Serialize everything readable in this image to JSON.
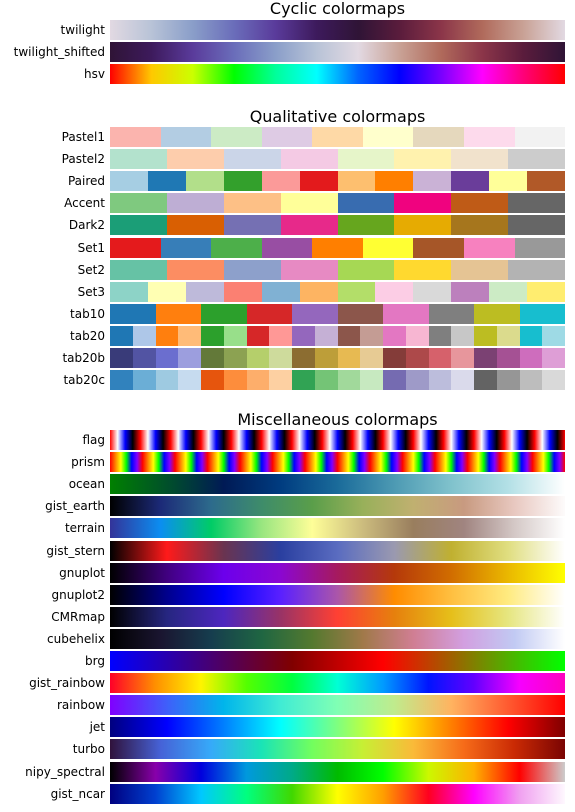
{
  "chart_data": {
    "type": "colormap-reference",
    "sections": [
      {
        "title": "Cyclic colormaps",
        "colormaps": [
          {
            "name": "twilight",
            "kind": "continuous",
            "colors": [
              "#e2d9e2",
              "#b8c3d7",
              "#8a9ec9",
              "#6a6dba",
              "#5a3b9b",
              "#3d1a5c",
              "#2f1436",
              "#5a1c3c",
              "#8b3549",
              "#b06a5b",
              "#c9a296",
              "#e2d9e2"
            ]
          },
          {
            "name": "twilight_shifted",
            "kind": "continuous",
            "colors": [
              "#2f1436",
              "#3d1a5c",
              "#5a3b9b",
              "#6a6dba",
              "#8a9ec9",
              "#b8c3d7",
              "#e2d9e2",
              "#c9a296",
              "#b06a5b",
              "#8b3549",
              "#5a1c3c",
              "#2f1436"
            ]
          },
          {
            "name": "hsv",
            "kind": "continuous",
            "colors": [
              "#ff0000",
              "#ffc800",
              "#cbff00",
              "#00ff00",
              "#00ff9a",
              "#00ffff",
              "#0064ff",
              "#0000ff",
              "#7800ff",
              "#ff00ff",
              "#ff0078",
              "#ff0000"
            ]
          }
        ]
      },
      {
        "title": "Qualitative colormaps",
        "colormaps": [
          {
            "name": "Pastel1",
            "kind": "discrete",
            "colors": [
              "#fbb4ae",
              "#b3cde3",
              "#ccebc5",
              "#decbe4",
              "#fed9a6",
              "#ffffcc",
              "#e5d8bd",
              "#fddaec",
              "#f2f2f2"
            ]
          },
          {
            "name": "Pastel2",
            "kind": "discrete",
            "colors": [
              "#b3e2cd",
              "#fdcdac",
              "#cbd5e8",
              "#f4cae4",
              "#e6f5c9",
              "#fff2ae",
              "#f1e2cc",
              "#cccccc"
            ]
          },
          {
            "name": "Paired",
            "kind": "discrete",
            "colors": [
              "#a6cee3",
              "#1f78b4",
              "#b2df8a",
              "#33a02c",
              "#fb9a99",
              "#e31a1c",
              "#fdbf6f",
              "#ff7f00",
              "#cab2d6",
              "#6a3d9a",
              "#ffff99",
              "#b15928"
            ]
          },
          {
            "name": "Accent",
            "kind": "discrete",
            "colors": [
              "#7fc97f",
              "#beaed4",
              "#fdc086",
              "#ffff99",
              "#386cb0",
              "#f0027f",
              "#bf5b17",
              "#666666"
            ]
          },
          {
            "name": "Dark2",
            "kind": "discrete",
            "colors": [
              "#1b9e77",
              "#d95f02",
              "#7570b3",
              "#e7298a",
              "#66a61e",
              "#e6ab02",
              "#a6761d",
              "#666666"
            ]
          },
          {
            "name": "Set1",
            "kind": "discrete",
            "colors": [
              "#e41a1c",
              "#377eb8",
              "#4daf4a",
              "#984ea3",
              "#ff7f00",
              "#ffff33",
              "#a65628",
              "#f781bf",
              "#999999"
            ]
          },
          {
            "name": "Set2",
            "kind": "discrete",
            "colors": [
              "#66c2a5",
              "#fc8d62",
              "#8da0cb",
              "#e78ac3",
              "#a6d854",
              "#ffd92f",
              "#e5c494",
              "#b3b3b3"
            ]
          },
          {
            "name": "Set3",
            "kind": "discrete",
            "colors": [
              "#8dd3c7",
              "#ffffb3",
              "#bebada",
              "#fb8072",
              "#80b1d3",
              "#fdb462",
              "#b3de69",
              "#fccde5",
              "#d9d9d9",
              "#bc80bd",
              "#ccebc5",
              "#ffed6f"
            ]
          },
          {
            "name": "tab10",
            "kind": "discrete",
            "colors": [
              "#1f77b4",
              "#ff7f0e",
              "#2ca02c",
              "#d62728",
              "#9467bd",
              "#8c564b",
              "#e377c2",
              "#7f7f7f",
              "#bcbd22",
              "#17becf"
            ]
          },
          {
            "name": "tab20",
            "kind": "discrete",
            "colors": [
              "#1f77b4",
              "#aec7e8",
              "#ff7f0e",
              "#ffbb78",
              "#2ca02c",
              "#98df8a",
              "#d62728",
              "#ff9896",
              "#9467bd",
              "#c5b0d5",
              "#8c564b",
              "#c49c94",
              "#e377c2",
              "#f7b6d2",
              "#7f7f7f",
              "#c7c7c7",
              "#bcbd22",
              "#dbdb8d",
              "#17becf",
              "#9edae5"
            ]
          },
          {
            "name": "tab20b",
            "kind": "discrete",
            "colors": [
              "#393b79",
              "#5254a3",
              "#6b6ecf",
              "#9c9ede",
              "#637939",
              "#8ca252",
              "#b5cf6b",
              "#cedb9c",
              "#8c6d31",
              "#bd9e39",
              "#e7ba52",
              "#e7cb94",
              "#843c39",
              "#ad494a",
              "#d6616b",
              "#e7969c",
              "#7b4173",
              "#a55194",
              "#ce6dbd",
              "#de9ed6"
            ]
          },
          {
            "name": "tab20c",
            "kind": "discrete",
            "colors": [
              "#3182bd",
              "#6baed6",
              "#9ecae1",
              "#c6dbef",
              "#e6550d",
              "#fd8d3c",
              "#fdae6b",
              "#fdd0a2",
              "#31a354",
              "#74c476",
              "#a1d99b",
              "#c7e9c0",
              "#756bb1",
              "#9e9ac8",
              "#bcbddc",
              "#dadaeb",
              "#636363",
              "#969696",
              "#bdbdbd",
              "#d9d9d9"
            ]
          }
        ]
      },
      {
        "title": "Miscellaneous colormaps",
        "colormaps": [
          {
            "name": "flag",
            "kind": "repeating",
            "colors": [
              "#ff0000",
              "#ffffff",
              "#0000ff",
              "#000000"
            ]
          },
          {
            "name": "prism",
            "kind": "repeating",
            "colors": [
              "#ff0000",
              "#ff8000",
              "#ffff00",
              "#00ff00",
              "#0000ff",
              "#8000ff"
            ]
          },
          {
            "name": "ocean",
            "kind": "continuous",
            "colors": [
              "#008000",
              "#00502a",
              "#001a55",
              "#003c80",
              "#1a6b9a",
              "#4d9ab3",
              "#80c2cc",
              "#b3e0e6",
              "#ffffff"
            ]
          },
          {
            "name": "gist_earth",
            "kind": "continuous",
            "colors": [
              "#000000",
              "#1c2a78",
              "#2d6b8c",
              "#3e8c6a",
              "#5a9e4a",
              "#98b05a",
              "#c0b070",
              "#c89a80",
              "#e8c8c0",
              "#fdfbfb"
            ]
          },
          {
            "name": "terrain",
            "kind": "continuous",
            "colors": [
              "#333399",
              "#0b8ef1",
              "#00cc66",
              "#99e680",
              "#fefe98",
              "#ccbc7e",
              "#997e5e",
              "#a08480",
              "#d4c8c6",
              "#ffffff"
            ]
          },
          {
            "name": "gist_stern",
            "kind": "continuous",
            "colors": [
              "#000000",
              "#ff1a1a",
              "#6a3450",
              "#2a3fa0",
              "#5a6cc0",
              "#9a99b0",
              "#c0b030",
              "#e0de80",
              "#ffffff"
            ]
          },
          {
            "name": "gnuplot",
            "kind": "continuous",
            "colors": [
              "#000000",
              "#40007f",
              "#6c00ec",
              "#8b07d1",
              "#a61a5e",
              "#b5390a",
              "#d16d00",
              "#eab800",
              "#ffff00"
            ]
          },
          {
            "name": "gnuplot2",
            "kind": "continuous",
            "colors": [
              "#000000",
              "#00008c",
              "#0000ff",
              "#5a20ff",
              "#ab56a9",
              "#ff8c00",
              "#ffbf40",
              "#ffeb80",
              "#ffffff"
            ]
          },
          {
            "name": "CMRmap",
            "kind": "continuous",
            "colors": [
              "#000000",
              "#262680",
              "#4d26bf",
              "#993366",
              "#ff4033",
              "#e6800d",
              "#e6bf1a",
              "#e6e680",
              "#ffffff"
            ]
          },
          {
            "name": "cubehelix",
            "kind": "continuous",
            "colors": [
              "#000000",
              "#1a1530",
              "#163d4e",
              "#1f6642",
              "#54792f",
              "#a07949",
              "#d07e93",
              "#d29fe0",
              "#c1caf3",
              "#ffffff"
            ]
          },
          {
            "name": "brg",
            "kind": "continuous",
            "colors": [
              "#0000ff",
              "#400080",
              "#800000",
              "#ff0000",
              "#808000",
              "#00ff00"
            ]
          },
          {
            "name": "gist_rainbow",
            "kind": "continuous",
            "colors": [
              "#ff0029",
              "#ff9000",
              "#fff400",
              "#54ff00",
              "#00ff3e",
              "#00ffd5",
              "#009bff",
              "#0014ff",
              "#6200ff",
              "#f600ff",
              "#ff00bf"
            ]
          },
          {
            "name": "rainbow",
            "kind": "continuous",
            "colors": [
              "#8000ff",
              "#3f5ffa",
              "#00b5eb",
              "#40ecd4",
              "#80ffb4",
              "#c0eb8d",
              "#ffb360",
              "#ff5a30",
              "#ff0000"
            ]
          },
          {
            "name": "jet",
            "kind": "continuous",
            "colors": [
              "#00007f",
              "#0000ff",
              "#007fff",
              "#00ffff",
              "#7fff7f",
              "#ffff00",
              "#ff7f00",
              "#ff0000",
              "#7f0000"
            ]
          },
          {
            "name": "turbo",
            "kind": "continuous",
            "colors": [
              "#30123b",
              "#4662d7",
              "#36aaf9",
              "#1ae4b6",
              "#72fe5e",
              "#c7ef34",
              "#faba39",
              "#f66b19",
              "#ca2a04",
              "#7a0403"
            ]
          },
          {
            "name": "nipy_spectral",
            "kind": "continuous",
            "colors": [
              "#000000",
              "#8800aa",
              "#0000dd",
              "#0099dd",
              "#00aa88",
              "#00bb00",
              "#00ff00",
              "#ccf800",
              "#ffb000",
              "#ff0000",
              "#cccccc"
            ]
          },
          {
            "name": "gist_ncar",
            "kind": "continuous",
            "colors": [
              "#000080",
              "#0040d0",
              "#00c8ff",
              "#00ff7f",
              "#40d800",
              "#ffff00",
              "#ff9f00",
              "#ff0020",
              "#ff00ff",
              "#f0a0f0",
              "#fef8fe"
            ]
          }
        ]
      }
    ]
  }
}
